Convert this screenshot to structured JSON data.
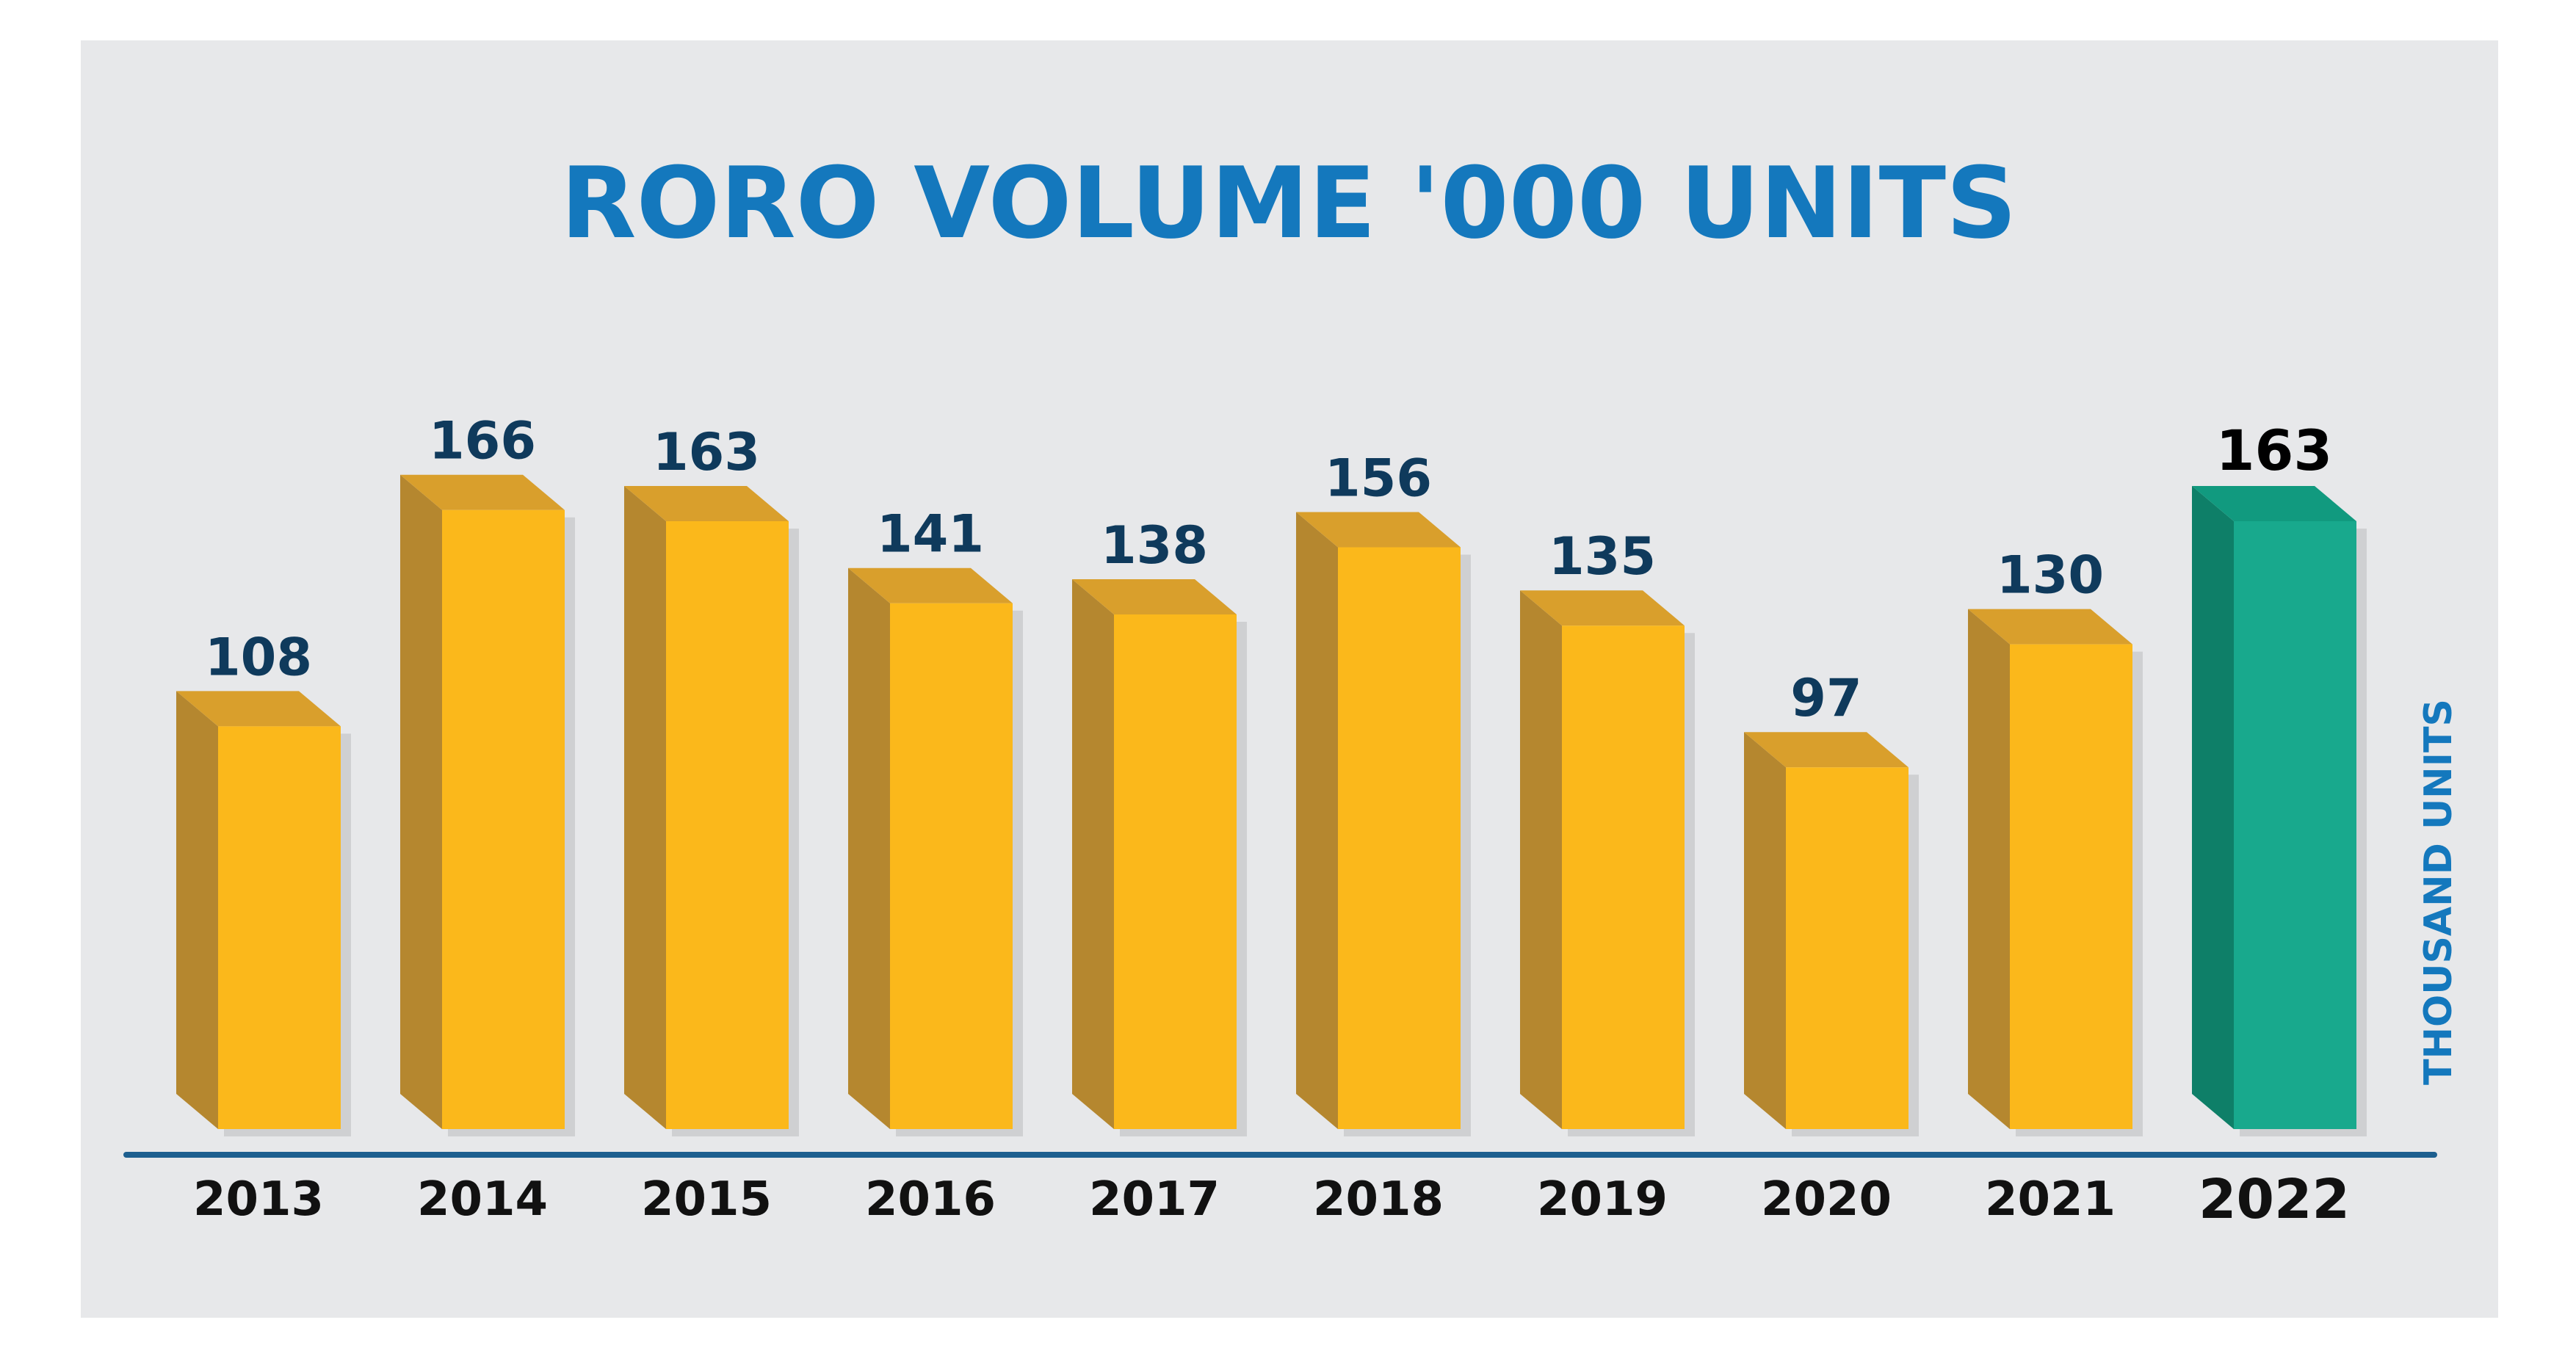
{
  "chart_data": {
    "type": "bar",
    "title": "RORO VOLUME '000 UNITS",
    "ylabel": "THOUSAND UNITS",
    "categories": [
      "2013",
      "2014",
      "2015",
      "2016",
      "2017",
      "2018",
      "2019",
      "2020",
      "2021",
      "2022"
    ],
    "values": [
      108,
      166,
      163,
      141,
      138,
      156,
      135,
      97,
      130,
      163
    ],
    "highlight_index": 9,
    "ylim": [
      0,
      170
    ],
    "grid": false,
    "legend": "none",
    "colors": {
      "bar_front": "#fbb81b",
      "bar_side": "#b5872f",
      "bar_top": "#d99f2c",
      "highlight_front": "#18a98d",
      "highlight_side": "#0e7f68",
      "highlight_top": "#119a7f",
      "axis": "#1d5f8f",
      "title": "#1478bd",
      "background": "#e7e8ea"
    }
  }
}
